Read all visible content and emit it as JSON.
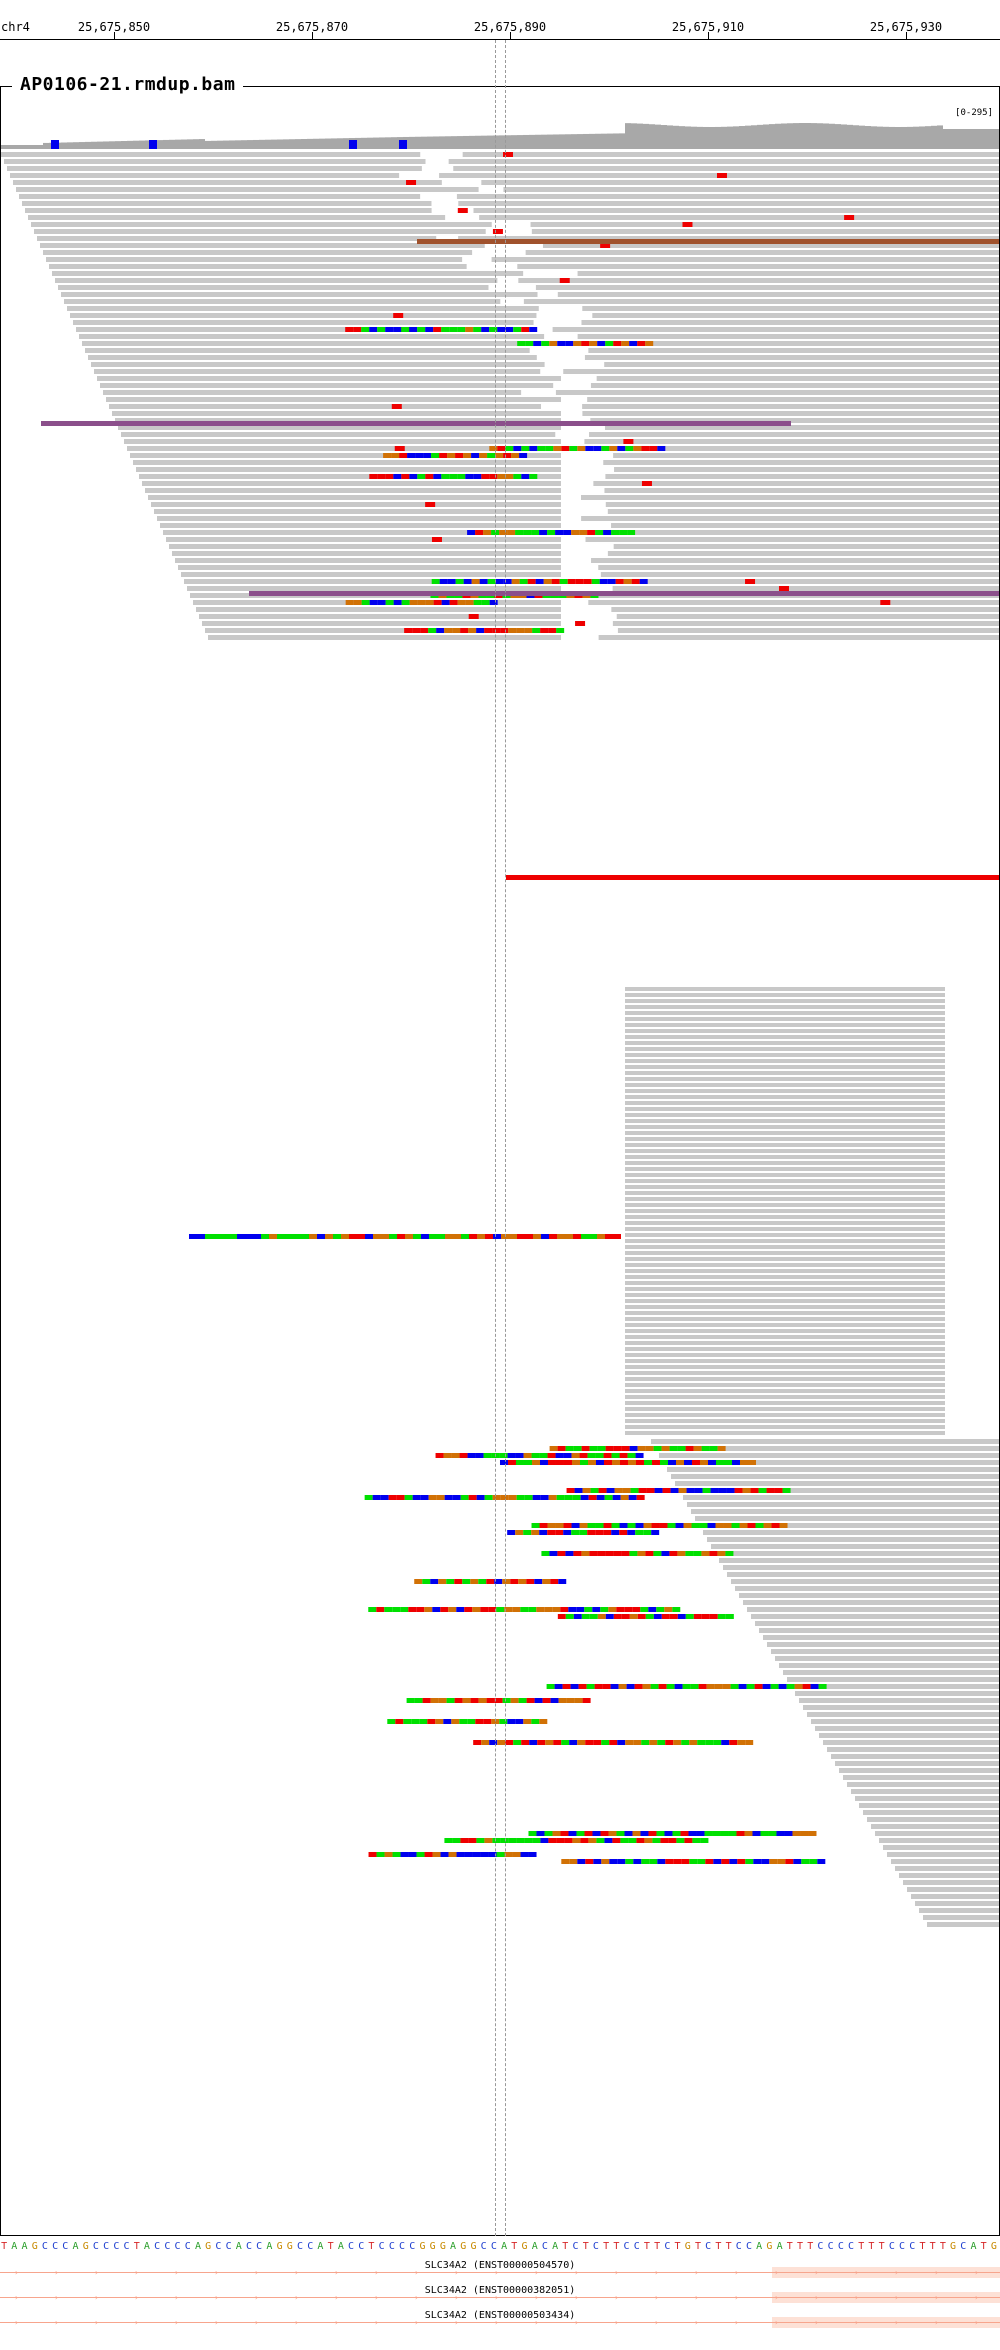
{
  "ruler": {
    "chromosome": "chr4",
    "ticks": [
      "25,675,850",
      "25,675,870",
      "25,675,890",
      "25,675,910",
      "25,675,930"
    ]
  },
  "track": {
    "title": "AP0106-21.rmdup.bam",
    "range": "[0-295]"
  },
  "reference_sequence": "TAAGCCCAGCCCCTACCCCAGCCACCAGGCCATACCTCCCCGGGAGGCCATGACATCTCTTCCTTCTGTCTTCCAGATTTCCCCTTTCCCTTTGCATG",
  "base_colors": {
    "A": "#2ca02c",
    "C": "#1f3fd0",
    "G": "#c88a00",
    "T": "#d62728"
  },
  "genes": [
    {
      "label": "SLC34A2 (ENST00000504570)"
    },
    {
      "label": "SLC34A2 (ENST00000382051)"
    },
    {
      "label": "SLC34A2 (ENST00000503434)"
    }
  ],
  "colors": {
    "read": "#c8c8c8",
    "coverage": "#a8a8a8",
    "mismatch_A": "#00e000",
    "mismatch_C": "#0000ee",
    "mismatch_G": "#d17105",
    "mismatch_T": "#ee0000"
  }
}
